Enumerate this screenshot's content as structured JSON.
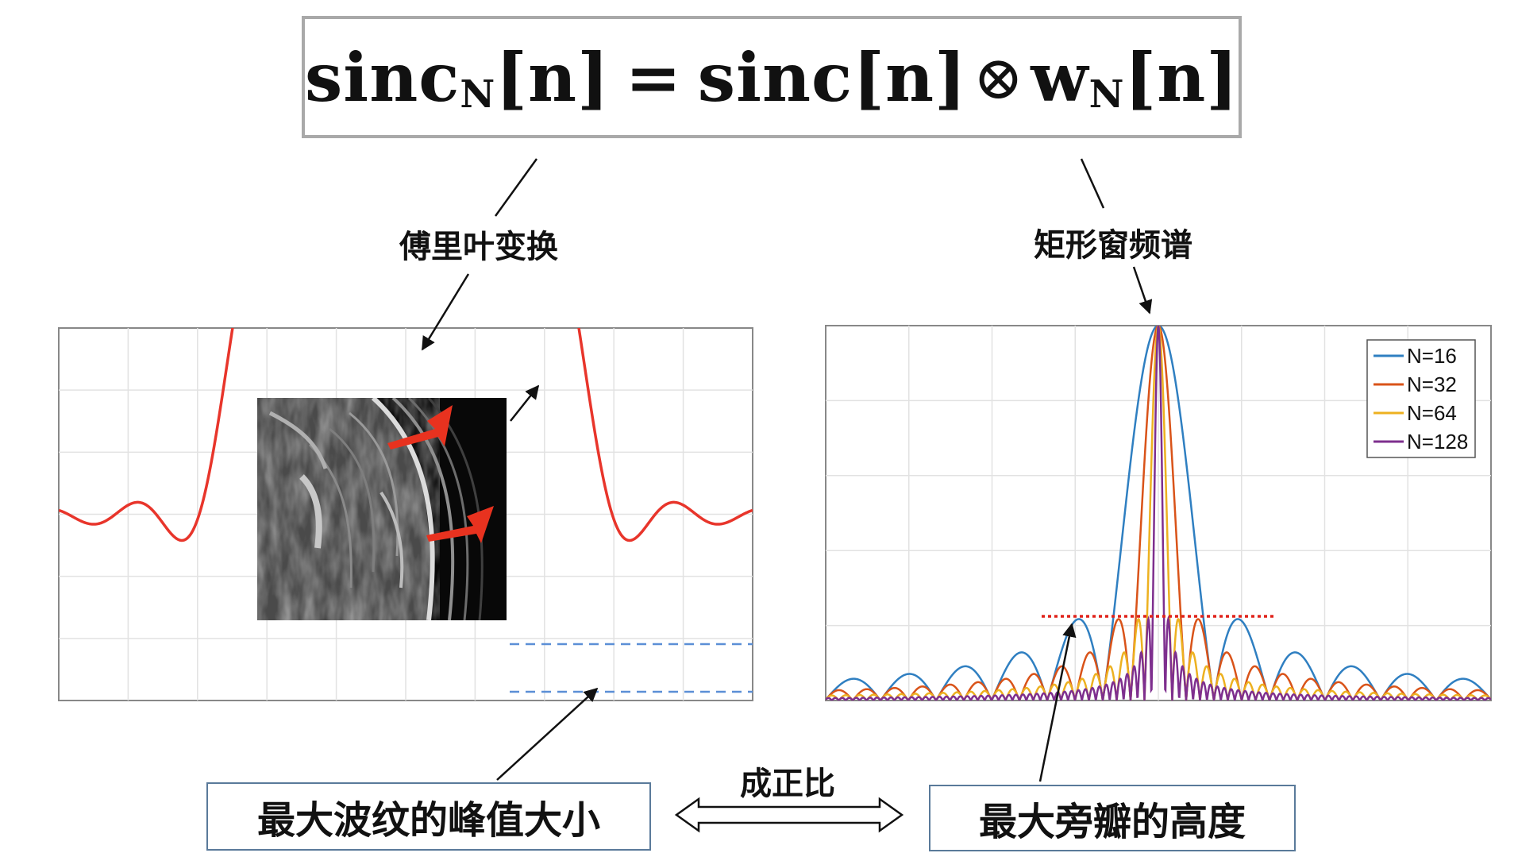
{
  "formula": {
    "lhs": "sinc",
    "lhs_sub": "N",
    "lhs_arg": "[n]",
    "equals": "=",
    "rhs1": "sinc[n]",
    "op": "⊗",
    "rhs2": "w",
    "rhs2_sub": "N",
    "rhs2_arg": "[n]"
  },
  "labels": {
    "fourier": "傅里叶变换",
    "rect_window": "矩形窗频谱",
    "proportional": "成正比",
    "max_ripple": "最大波纹的峰值大小",
    "max_sidelobe": "最大旁瓣的高度"
  },
  "colors": {
    "ripple_curve": "#e8352b",
    "blue_dashes": "#5b8fd6",
    "red_dots": "#e0241c",
    "N16": "#2f7fc1",
    "N32": "#d95319",
    "N64": "#edb120",
    "N128": "#7e2f8e",
    "arrow_red": "#e8321f"
  },
  "chart_data": [
    {
      "type": "line",
      "title": "",
      "xlabel": "",
      "ylabel": "",
      "grid": true,
      "series": [
        {
          "kind": "truncated-sinc-rect-response (Gibbs ringing)"
        }
      ]
    },
    {
      "type": "line",
      "title": "",
      "xlabel": "",
      "ylabel": "",
      "grid": true,
      "legend_position": "top-right",
      "series": [
        {
          "name": "N=16",
          "N": 16
        },
        {
          "name": "N=32",
          "N": 32
        },
        {
          "name": "N=64",
          "N": 64
        },
        {
          "name": "N=128",
          "N": 128
        }
      ]
    }
  ]
}
